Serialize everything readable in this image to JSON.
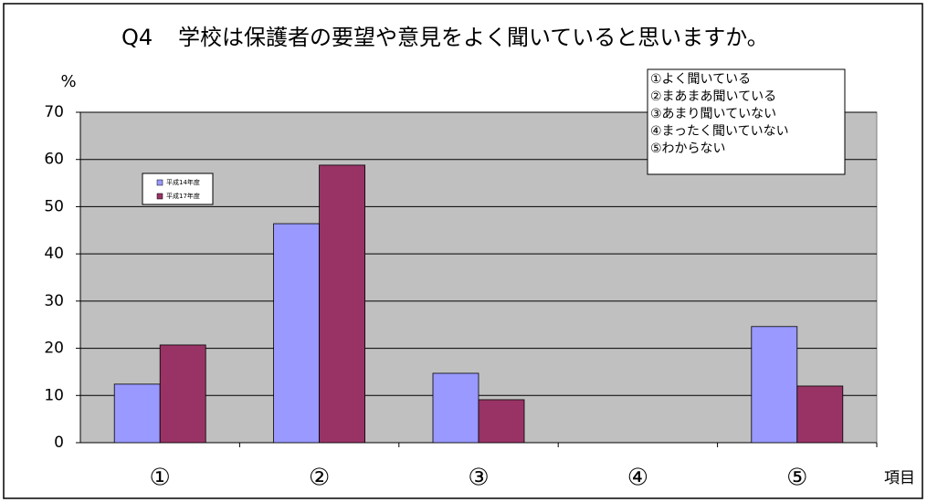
{
  "chart_data": {
    "type": "bar",
    "title_label": "Q4",
    "title": "学校は保護者の要望や意見をよく聞いていると思いますか。",
    "y_label": "%",
    "x_label": "項目",
    "categories": [
      "①",
      "②",
      "③",
      "④",
      "⑤"
    ],
    "series": [
      {
        "name": "平成14年度",
        "color": "#9999ff",
        "values": [
          12.4,
          46.4,
          14.7,
          0,
          24.6
        ]
      },
      {
        "name": "平成17年度",
        "color": "#993366",
        "values": [
          20.7,
          58.8,
          9.1,
          0,
          12.0
        ]
      }
    ],
    "ylim": [
      0,
      70
    ],
    "yticks": [
      0,
      10,
      20,
      30,
      40,
      50,
      60,
      70
    ],
    "grid": true,
    "notes": [
      "①よく聞いている",
      "②まあまあ聞いている",
      "③あまり聞いていない",
      "④まったく聞いていない",
      "⑤わからない"
    ]
  }
}
